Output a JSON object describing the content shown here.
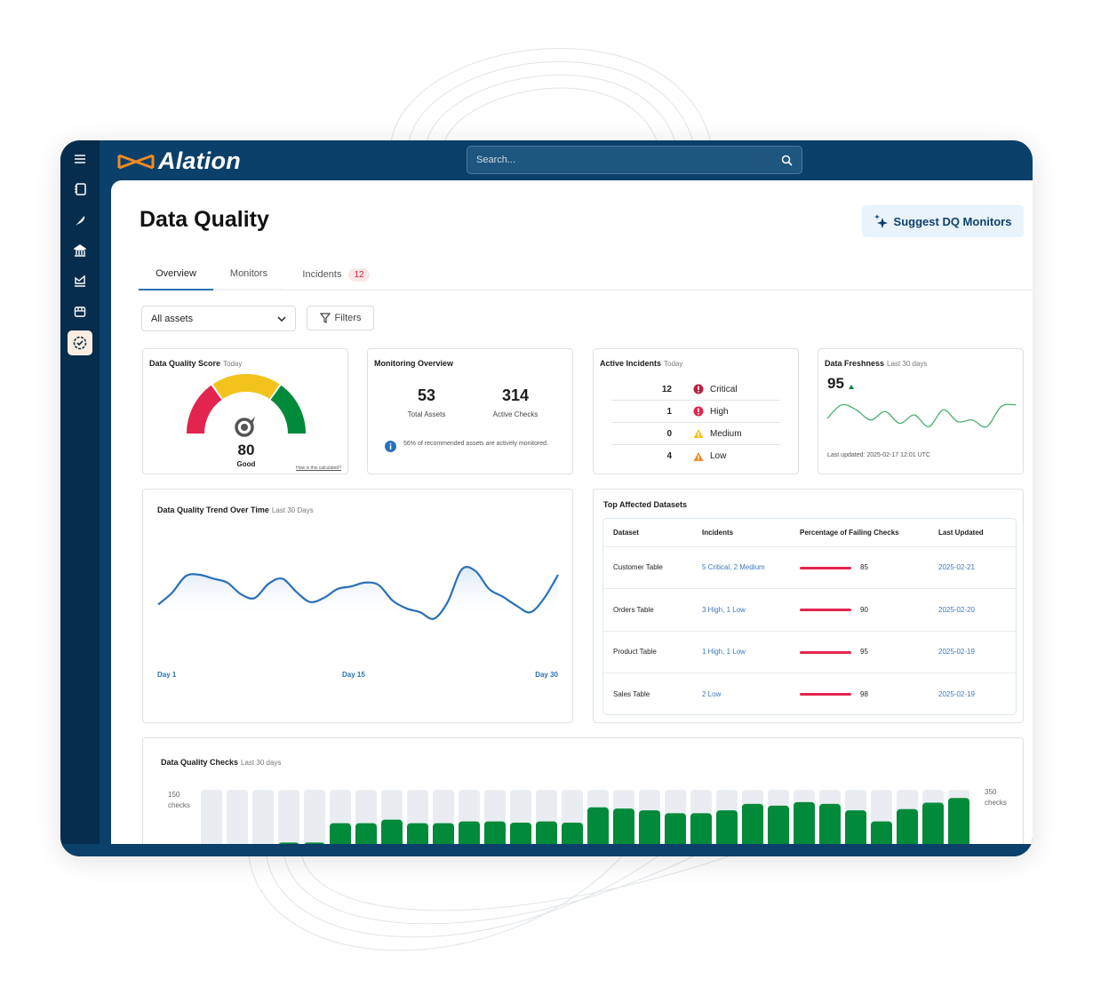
{
  "app": {
    "brand": "Alation",
    "search_placeholder": "Search..."
  },
  "sidebar": {
    "items": [
      {
        "icon": "menu-icon"
      },
      {
        "icon": "catalog-book-icon"
      },
      {
        "icon": "quill-icon"
      },
      {
        "icon": "governance-building-icon"
      },
      {
        "icon": "analytics-chart-icon"
      },
      {
        "icon": "marketplace-store-icon"
      },
      {
        "icon": "data-quality-badge-icon",
        "active": true
      }
    ]
  },
  "page": {
    "title": "Data Quality",
    "suggest_label": "Suggest DQ Monitors"
  },
  "tabs": [
    {
      "label": "Overview",
      "active": true
    },
    {
      "label": "Monitors"
    },
    {
      "label": "Incidents",
      "badge": "12"
    }
  ],
  "filters": {
    "asset_select": "All assets",
    "filters_label": "Filters"
  },
  "score": {
    "title": "Data Quality Score",
    "subtitle": "Today",
    "value": "80",
    "rating": "Good",
    "link": "How is this calculated?",
    "colors": {
      "low": "#e2254e",
      "mid": "#f2c31c",
      "high": "#018a3a"
    }
  },
  "monitoring": {
    "title": "Monitoring Overview",
    "total_assets": "53",
    "total_assets_label": "Total Assets",
    "active_checks": "314",
    "active_checks_label": "Active Checks",
    "note": "56% of recommended assets are actively monitored."
  },
  "incidents": {
    "title": "Active Incidents",
    "subtitle": "Today",
    "rows": [
      {
        "count": "12",
        "label": "Critical",
        "color": "#b8203e"
      },
      {
        "count": "1",
        "label": "High",
        "color": "#e2254e"
      },
      {
        "count": "0",
        "label": "Medium",
        "color": "#f2c31c"
      },
      {
        "count": "4",
        "label": "Low",
        "color": "#f08a24"
      }
    ]
  },
  "freshness": {
    "title": "Data Freshness",
    "subtitle": "Last 30 days",
    "value": "95",
    "trend": "up",
    "updated": "Last updated: 2025-02-17 12:01 UTC",
    "sparkline": [
      86,
      94,
      91,
      85,
      90,
      83,
      88,
      81,
      91,
      84,
      85,
      81,
      93,
      94
    ],
    "color": "#4caf72"
  },
  "chart_data": [
    {
      "type": "line",
      "title": "Data Quality Trend Over Time",
      "subtitle": "Last 30 Days",
      "x_ticks": [
        "Day 1",
        "Day 15",
        "Day 30"
      ],
      "x": [
        1,
        2,
        3,
        4,
        5,
        6,
        7,
        8,
        9,
        10,
        11,
        12,
        13,
        14,
        15,
        16,
        17,
        18,
        19,
        20,
        21,
        22,
        23,
        24,
        25,
        26,
        27,
        28,
        29,
        30
      ],
      "values": [
        61,
        70,
        83,
        84,
        81,
        78,
        69,
        66,
        77,
        81,
        71,
        63,
        66,
        73,
        75,
        78,
        76,
        64,
        58,
        55,
        50,
        63,
        88,
        87,
        73,
        67,
        60,
        55,
        66,
        84
      ],
      "color": "#2a70b8",
      "grid": false
    },
    {
      "type": "bar",
      "title": "Data Quality Checks",
      "subtitle": "Last 30 days",
      "left_label": "150 checks",
      "right_label": "350 checks",
      "values": [
        0,
        0,
        0.05,
        0.1,
        0.1,
        0.43,
        0.43,
        0.49,
        0.43,
        0.43,
        0.46,
        0.46,
        0.44,
        0.46,
        0.44,
        0.7,
        0.68,
        0.65,
        0.6,
        0.6,
        0.65,
        0.76,
        0.73,
        0.79,
        0.76,
        0.65,
        0.46,
        0.67,
        0.78,
        0.86
      ],
      "color": "#018a3a",
      "track_color": "#e9edf1"
    }
  ],
  "datasets": {
    "title": "Top Affected Datasets",
    "columns": [
      "Dataset",
      "Incidents",
      "Percentage of Failing Checks",
      "Last Updated"
    ],
    "rows": [
      {
        "name": "Customer Table",
        "incidents": "5 Critical, 2 Medium",
        "pct": "85",
        "updated": "2025-02-21"
      },
      {
        "name": "Orders Table",
        "incidents": "3 High, 1 Low",
        "pct": "90",
        "updated": "2025-02-20"
      },
      {
        "name": "Product Table",
        "incidents": "1 High, 1 Low",
        "pct": "95",
        "updated": "2025-02-19"
      },
      {
        "name": "Sales Table",
        "incidents": "2 Low",
        "pct": "98",
        "updated": "2025-02-19"
      }
    ]
  }
}
